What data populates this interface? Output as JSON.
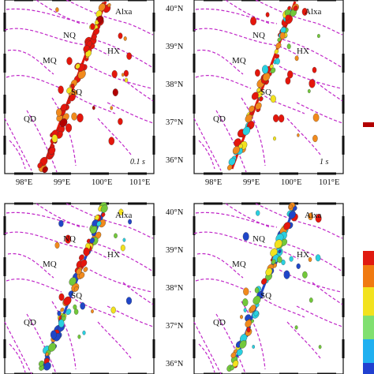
{
  "figure": {
    "lon_ticks": [
      "98°E",
      "99°E",
      "100°E",
      "101°E"
    ],
    "lat_ticks": [
      "40°N",
      "39°N",
      "38°N",
      "37°N",
      "36°N"
    ],
    "sites": [
      "Alxa",
      "NQ",
      "HX",
      "MQ",
      "SQ",
      "QD"
    ],
    "colorbar_colors": [
      "#7a0000",
      "#ff0000",
      "#ff7f00",
      "#ffff00",
      "#80ff80",
      "#00c0ff",
      "#0000ff",
      "#000080"
    ],
    "fault_color": "#c026c8",
    "colors": {
      "red": "#e4160c",
      "orange": "#f18a1c",
      "yellow": "#f2e21e",
      "green": "#72c83a",
      "cyan": "#2ad0e0",
      "blue": "#2046c8",
      "darkred": "#b20000"
    }
  },
  "panels": [
    {
      "id": "a",
      "tag": "0.1 s",
      "show_lon": true,
      "show_lat": false
    },
    {
      "id": "b",
      "tag": "1 s",
      "show_lon": true,
      "show_lat": true
    },
    {
      "id": "c",
      "tag": "",
      "show_lon": false,
      "show_lat": false
    },
    {
      "id": "d",
      "tag": "",
      "show_lon": false,
      "show_lat": true
    }
  ]
}
